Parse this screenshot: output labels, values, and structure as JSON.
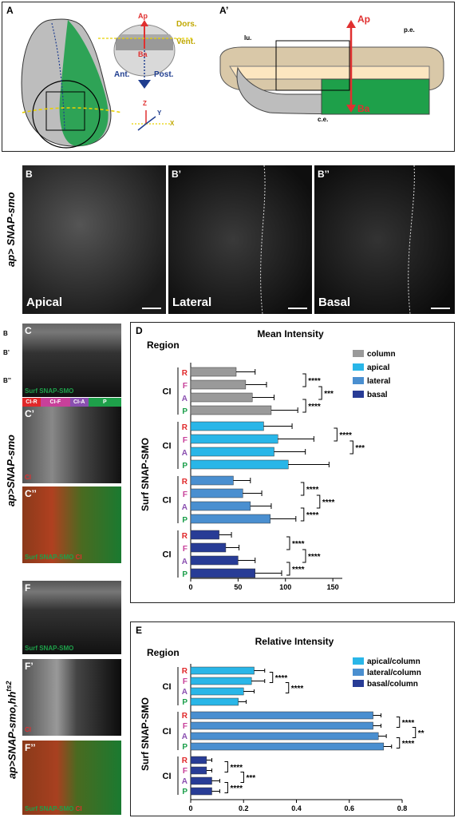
{
  "panelA": {
    "label": "A",
    "axis_ap": "Ap",
    "axis_ba": "Ba",
    "dors": "Dors.",
    "vent": "Vent.",
    "ant": "Ant.",
    "post": "Post.",
    "z": "Z",
    "y": "Y",
    "x": "X"
  },
  "panelA2": {
    "label": "A’",
    "ap": "Ap",
    "ba": "Ba",
    "lu": "lu.",
    "pe": "p.e.",
    "ce": "c.e."
  },
  "rowB": {
    "row_label": "ap> SNAP-smo",
    "panels": [
      {
        "label": "B",
        "caption": "Apical"
      },
      {
        "label": "B’",
        "caption": "Lateral"
      },
      {
        "label": "B’’",
        "caption": "Basal"
      }
    ]
  },
  "colC": {
    "row_label": "ap>SNAP-smo",
    "side_marks": [
      "B",
      "B’",
      "B’’"
    ],
    "c_label": "C",
    "c_caption": "Surf SNAP-SMO",
    "region_bar": [
      "CI-R",
      "CI-F",
      "CI-A",
      "P"
    ],
    "c1_label": "C’",
    "c1_caption": "CI",
    "c2_label": "C’’",
    "c2_caption_a": "Surf SNAP-SMO",
    "c2_caption_b": "CI"
  },
  "colF": {
    "row_label": "ap>SNAP-smo,hh",
    "row_label_sup": "ts2",
    "f_label": "F",
    "f_caption": "Surf SNAP-SMO",
    "f1_label": "F’",
    "f1_caption": "CI",
    "f2_label": "F’’",
    "f2_caption_a": "Surf SNAP-SMO",
    "f2_caption_b": "CI"
  },
  "colors": {
    "apical": "#29b6e8",
    "lateral": "#4a8fd0",
    "basal": "#283c96",
    "column": "#9a9a9a",
    "R": "#e0282a",
    "F": "#c8409a",
    "A": "#8a4fb0",
    "P": "#1a9e4a",
    "green": "#1ea04a",
    "red": "#e03030"
  },
  "chart_data": [
    {
      "panel": "D",
      "type": "bar",
      "orientation": "horizontal",
      "title": "Mean Intensity",
      "group_header": "Region",
      "ylabel": "Surf SNAP-SMO",
      "group_label": "CI",
      "categories": [
        "R",
        "F",
        "A",
        "P"
      ],
      "xlim": [
        0,
        160
      ],
      "xticks": [
        0,
        50,
        100,
        150
      ],
      "legend_position": "top-right",
      "series": [
        {
          "name": "column",
          "values": [
            48,
            58,
            65,
            85
          ],
          "errors": [
            20,
            22,
            23,
            28
          ]
        },
        {
          "name": "apical",
          "values": [
            77,
            92,
            88,
            103
          ],
          "errors": [
            30,
            38,
            33,
            43
          ]
        },
        {
          "name": "lateral",
          "values": [
            45,
            55,
            63,
            84
          ],
          "errors": [
            18,
            20,
            22,
            27
          ]
        },
        {
          "name": "basal",
          "values": [
            30,
            37,
            50,
            68
          ],
          "errors": [
            13,
            14,
            18,
            28
          ]
        }
      ],
      "significance": [
        [
          "****",
          "***",
          "****"
        ],
        [
          "****",
          "***"
        ],
        [
          "****",
          "****",
          "****"
        ],
        [
          "****",
          "****",
          "****"
        ]
      ]
    },
    {
      "panel": "E",
      "type": "bar",
      "orientation": "horizontal",
      "title": "Relative Intensity",
      "group_header": "Region",
      "ylabel": "Surf SNAP-SMO",
      "group_label": "CI",
      "categories": [
        "R",
        "F",
        "A",
        "P"
      ],
      "xlim": [
        0,
        0.8
      ],
      "xticks": [
        0.0,
        0.2,
        0.4,
        0.6,
        0.8
      ],
      "legend_position": "top-right",
      "series": [
        {
          "name": "apical/column",
          "values": [
            0.24,
            0.23,
            0.2,
            0.18
          ],
          "errors": [
            0.04,
            0.05,
            0.04,
            0.03
          ]
        },
        {
          "name": "lateral/column",
          "values": [
            0.69,
            0.69,
            0.71,
            0.73
          ],
          "errors": [
            0.03,
            0.03,
            0.03,
            0.03
          ]
        },
        {
          "name": "basal/column",
          "values": [
            0.06,
            0.06,
            0.08,
            0.08
          ],
          "errors": [
            0.02,
            0.02,
            0.03,
            0.03
          ]
        }
      ],
      "significance": [
        [
          "****",
          "****"
        ],
        [
          "****",
          "**",
          "****"
        ],
        [
          "****",
          "***",
          "****"
        ]
      ]
    }
  ]
}
